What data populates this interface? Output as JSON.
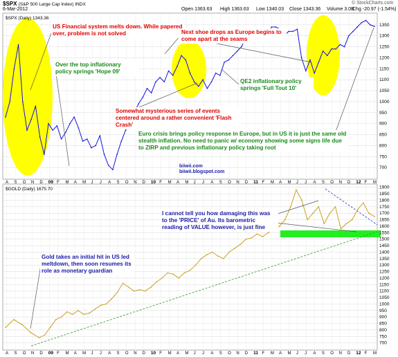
{
  "header": {
    "title": "$SPX",
    "subtitle": "(S&P 500 Large Cap Index) INDX",
    "date": "6-Mar-2012",
    "open": "Open 1363.63",
    "high": "High 1363.63",
    "low": "Low 1340.03",
    "close": "Close 1343.36",
    "volume": "Volume 3.0B",
    "chg": "Chg -20.97 (-1.54%)",
    "chg_arrow": "▼",
    "credit": "© StockCharts.com"
  },
  "chart_data": [
    {
      "type": "line",
      "legend": "$SPX (Daily) 1343.36",
      "series": [
        {
          "color": "#1010e0",
          "points": [
            [
              0,
              930
            ],
            [
              2,
              1000
            ],
            [
              4,
              1150
            ],
            [
              6,
              1260
            ],
            [
              8,
              1000
            ],
            [
              10,
              870
            ],
            [
              12,
              920
            ],
            [
              14,
              980
            ],
            [
              16,
              840
            ],
            [
              18,
              760
            ],
            [
              20,
              900
            ],
            [
              22,
              870
            ],
            [
              24,
              890
            ],
            [
              26,
              830
            ],
            [
              28,
              860
            ],
            [
              30,
              900
            ],
            [
              32,
              930
            ],
            [
              34,
              880
            ],
            [
              36,
              820
            ],
            [
              38,
              830
            ],
            [
              40,
              790
            ],
            [
              42,
              800
            ],
            [
              44,
              845
            ],
            [
              46,
              760
            ],
            [
              48,
              710
            ],
            [
              50,
              690
            ],
            [
              52,
              760
            ],
            [
              54,
              820
            ],
            [
              56,
              870
            ],
            [
              58,
              900
            ],
            [
              60,
              950
            ],
            [
              62,
              990
            ],
            [
              64,
              1020
            ],
            [
              66,
              1060
            ],
            [
              68,
              1040
            ],
            [
              70,
              1090
            ],
            [
              72,
              1110
            ],
            [
              74,
              1090
            ],
            [
              76,
              1140
            ],
            [
              78,
              1120
            ],
            [
              80,
              1160
            ],
            [
              82,
              1210
            ],
            [
              84,
              1190
            ],
            [
              86,
              1130
            ],
            [
              88,
              1090
            ],
            [
              90,
              1070
            ],
            [
              92,
              1100
            ],
            [
              94,
              1060
            ],
            [
              96,
              1090
            ],
            [
              98,
              1130
            ],
            [
              100,
              1120
            ],
            [
              102,
              1180
            ],
            [
              104,
              1190
            ],
            [
              106,
              1210
            ],
            [
              108,
              1230
            ],
            [
              110,
              1250
            ],
            [
              112,
              1290
            ],
            [
              114,
              1310
            ],
            [
              116,
              1300
            ],
            [
              118,
              1330
            ],
            [
              120,
              1320
            ],
            [
              122,
              1300
            ],
            [
              124,
              1340
            ],
            [
              126,
              1340
            ],
            [
              128,
              1330
            ],
            [
              130,
              1300
            ],
            [
              132,
              1320
            ],
            [
              134,
              1320
            ],
            [
              136,
              1330
            ],
            [
              138,
              1200
            ],
            [
              140,
              1140
            ],
            [
              142,
              1190
            ],
            [
              144,
              1130
            ],
            [
              146,
              1180
            ],
            [
              148,
              1230
            ],
            [
              150,
              1210
            ],
            [
              152,
              1240
            ],
            [
              154,
              1240
            ],
            [
              156,
              1260
            ],
            [
              158,
              1250
            ],
            [
              160,
              1300
            ],
            [
              162,
              1320
            ],
            [
              164,
              1340
            ],
            [
              166,
              1360
            ],
            [
              168,
              1370
            ],
            [
              170,
              1350
            ],
            [
              172,
              1343
            ]
          ]
        }
      ],
      "ylim": [
        650,
        1400
      ],
      "y_ticks": [
        700,
        750,
        800,
        850,
        900,
        950,
        1000,
        1050,
        1100,
        1150,
        1200,
        1250,
        1300,
        1350
      ],
      "x_months": [
        "A",
        "S",
        "O",
        "N",
        "D",
        "09",
        "F",
        "M",
        "A",
        "M",
        "J",
        "J",
        "A",
        "S",
        "O",
        "N",
        "D",
        "10",
        "F",
        "M",
        "A",
        "M",
        "J",
        "J",
        "A",
        "S",
        "O",
        "N",
        "D",
        "11",
        "F",
        "M",
        "A",
        "M",
        "J",
        "J",
        "A",
        "S",
        "O",
        "N",
        "D",
        "12",
        "F",
        "M"
      ]
    },
    {
      "type": "line",
      "legend": "$GOLD (Daily) 1675.70",
      "series": [
        {
          "color": "#c8a020",
          "points": [
            [
              0,
              820
            ],
            [
              3,
              880
            ],
            [
              6,
              840
            ],
            [
              9,
              780
            ],
            [
              12,
              740
            ],
            [
              14,
              760
            ],
            [
              16,
              820
            ],
            [
              18,
              880
            ],
            [
              20,
              900
            ],
            [
              22,
              940
            ],
            [
              24,
              920
            ],
            [
              26,
              950
            ],
            [
              28,
              920
            ],
            [
              30,
              930
            ],
            [
              32,
              960
            ],
            [
              34,
              990
            ],
            [
              36,
              1000
            ],
            [
              38,
              1040
            ],
            [
              40,
              1090
            ],
            [
              42,
              1160
            ],
            [
              44,
              1130
            ],
            [
              46,
              1100
            ],
            [
              48,
              1110
            ],
            [
              50,
              1100
            ],
            [
              52,
              1130
            ],
            [
              54,
              1170
            ],
            [
              56,
              1200
            ],
            [
              58,
              1240
            ],
            [
              60,
              1230
            ],
            [
              62,
              1200
            ],
            [
              64,
              1240
            ],
            [
              66,
              1260
            ],
            [
              68,
              1300
            ],
            [
              70,
              1350
            ],
            [
              72,
              1380
            ],
            [
              74,
              1400
            ],
            [
              76,
              1370
            ],
            [
              78,
              1350
            ],
            [
              80,
              1400
            ],
            [
              82,
              1430
            ],
            [
              84,
              1460
            ],
            [
              86,
              1500
            ],
            [
              88,
              1510
            ],
            [
              90,
              1540
            ],
            [
              92,
              1520
            ],
            [
              94,
              1550
            ],
            [
              96,
              1580
            ],
            [
              98,
              1600
            ],
            [
              100,
              1650
            ],
            [
              102,
              1750
            ],
            [
              104,
              1880
            ],
            [
              106,
              1800
            ],
            [
              108,
              1650
            ],
            [
              110,
              1700
            ],
            [
              112,
              1750
            ],
            [
              114,
              1620
            ],
            [
              116,
              1700
            ],
            [
              118,
              1750
            ],
            [
              120,
              1580
            ],
            [
              122,
              1620
            ],
            [
              124,
              1650
            ],
            [
              126,
              1730
            ],
            [
              128,
              1780
            ],
            [
              130,
              1700
            ],
            [
              132,
              1675
            ]
          ]
        }
      ],
      "ylim": [
        650,
        1920
      ],
      "y_ticks": [
        700,
        750,
        800,
        850,
        900,
        950,
        1000,
        1050,
        1100,
        1150,
        1200,
        1250,
        1300,
        1350,
        1400,
        1450,
        1500,
        1550,
        1600,
        1650,
        1700,
        1750,
        1800,
        1850,
        1900
      ],
      "x_months": [
        "A",
        "S",
        "O",
        "N",
        "D",
        "09",
        "F",
        "M",
        "A",
        "M",
        "J",
        "J",
        "A",
        "S",
        "O",
        "N",
        "D",
        "10",
        "F",
        "M",
        "A",
        "M",
        "J",
        "J",
        "A",
        "S",
        "O",
        "N",
        "D",
        "11",
        "F",
        "M",
        "A",
        "M",
        "J",
        "J",
        "A",
        "S",
        "O",
        "N",
        "D",
        "12",
        "F",
        "M"
      ]
    }
  ],
  "annotations": {
    "a1": "US Financial system melts down.  While papered over, problem is not solved",
    "a2": "Over the top inflationary policy springs 'Hope 09'",
    "a3": "Next shoe drops as Europe begins to come apart at the seams",
    "a4": "QE2 inflationary policy springs 'Full Tout 10'",
    "a5": "Somewhat mysterious series of events centered around a rather convenient 'Flash Crash'",
    "a6": "Euro crisis brings policy response in Europe, but in US it is just the same old stealth inflation.  No need to panic w/ economy showing some signs life due to ZIRP and previous inflationary policy taking root",
    "a7": "biiwii.com",
    "a8": "biiwii.blogspot.com",
    "a9": "I cannot tell you how damaging this was to the 'PRICE' of Au.  Its barometric reading of VALUE however, is just fine",
    "a10": "Gold takes an initial hit in US led meltdown, then soon resumes its role as monetary guardian"
  }
}
